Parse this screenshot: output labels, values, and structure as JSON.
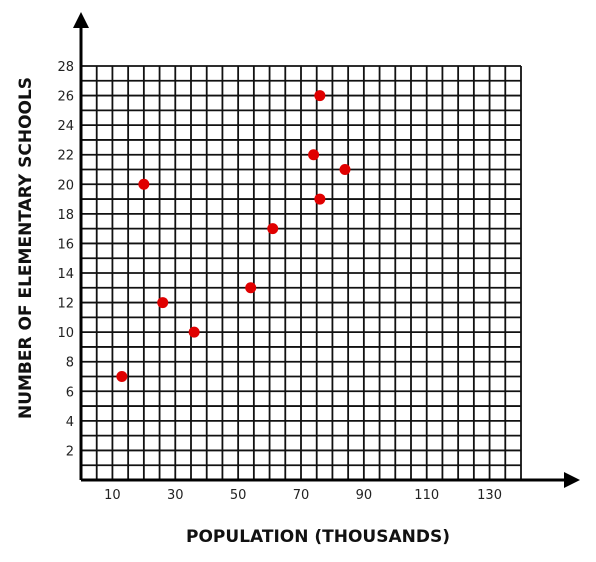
{
  "chart_data": {
    "type": "scatter",
    "xlabel": "POPULATION (THOUSANDS)",
    "ylabel": "NUMBER OF ELEMENTARY SCHOOLS",
    "x_ticks": [
      10,
      30,
      50,
      70,
      90,
      110,
      130
    ],
    "y_ticks": [
      2,
      4,
      6,
      8,
      10,
      12,
      14,
      16,
      18,
      20,
      22,
      24,
      26,
      28
    ],
    "xlim": [
      0,
      140
    ],
    "ylim": [
      0,
      28
    ],
    "grid": true,
    "point_color": "#e00000",
    "points": [
      {
        "x": 13,
        "y": 7
      },
      {
        "x": 20,
        "y": 20
      },
      {
        "x": 26,
        "y": 12
      },
      {
        "x": 36,
        "y": 10
      },
      {
        "x": 54,
        "y": 13
      },
      {
        "x": 61,
        "y": 17
      },
      {
        "x": 74,
        "y": 22
      },
      {
        "x": 76,
        "y": 26
      },
      {
        "x": 76,
        "y": 19
      },
      {
        "x": 84,
        "y": 21
      }
    ]
  }
}
